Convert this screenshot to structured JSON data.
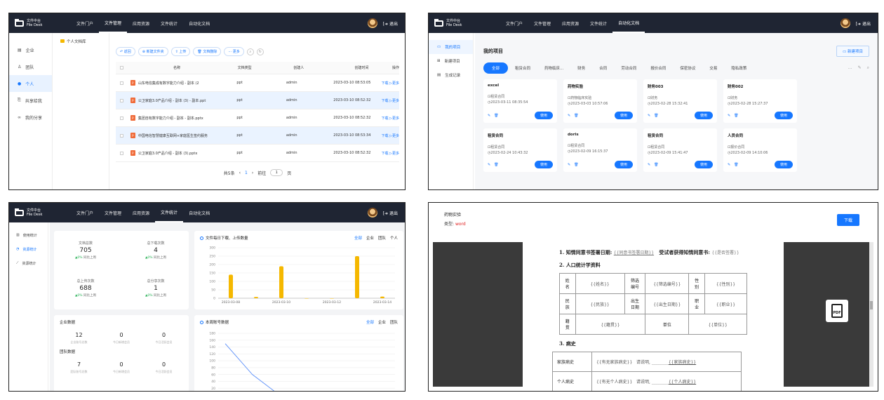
{
  "brand": {
    "line1": "文件中台",
    "line2": "File Desk",
    "logout": "退出"
  },
  "nav": [
    "文件门户",
    "文件管理",
    "应用资源",
    "文件统计",
    "自动化文档"
  ],
  "p1": {
    "sidebar": [
      "企业",
      "团队",
      "个人",
      "共享给我",
      "我的分享"
    ],
    "tree_folder": "个人文档库",
    "toolbar": [
      "返回",
      "新建文件夹",
      "上传",
      "文档删除",
      "更多"
    ],
    "columns": [
      "名称",
      "文档类型",
      "创建人",
      "创建时间",
      "操作"
    ],
    "rows": [
      {
        "name": "山东电信集成有数字能力介绍 - 副本 (2",
        "type": "ppt",
        "user": "admin",
        "time": "2023-03-10 08:53:05",
        "op": "下载 ▷更多"
      },
      {
        "name": "公卫家庭3.0产品介绍 - 副本 (3) - 副本.ppt",
        "type": "ppt",
        "user": "admin",
        "time": "2023-03-10 08:52:32",
        "op": "下载 ▷更多"
      },
      {
        "name": "集团自有数字能力介绍 - 副本 - 副本.pptx",
        "type": "ppt",
        "user": "admin",
        "time": "2023-03-10 08:52:32",
        "op": "下载 ▷更多"
      },
      {
        "name": "中国电信智慧健康互联网+家庭医生签约服务",
        "type": "ppt",
        "user": "admin",
        "time": "2023-03-10 08:53:34",
        "op": "下载 ▷更多"
      },
      {
        "name": "公卫家庭3.0产品介绍 - 副本 (3).pptx",
        "type": "ppt",
        "user": "admin",
        "time": "2023-03-10 08:52:32",
        "op": "下载 ▷更多"
      }
    ],
    "pager": {
      "total": "共5条",
      "page": "1",
      "goto": "前往",
      "goto_val": "1",
      "unit": "页"
    }
  },
  "p2": {
    "sidebar": [
      "我的项目",
      "新建项目",
      "生成记录"
    ],
    "title": "我的项目",
    "new_button": "新建项目",
    "tabs": [
      "全部",
      "租赁合同",
      "药物临床...",
      "财务",
      "合同",
      "劳动合同",
      "报价合同",
      "保密协议",
      "交易",
      "隐私政策"
    ],
    "use_label": "使用",
    "cards": [
      {
        "title": "excel",
        "tag": "租赁合同",
        "time": "2023-03-11 08:35:54"
      },
      {
        "title": "药物实验",
        "tag": "药物临床实验",
        "time": "2023-03-03 10:57:06"
      },
      {
        "title": "财务003",
        "tag": "财务",
        "time": "2023-02-28 15:32:41"
      },
      {
        "title": "财务002",
        "tag": "财务",
        "time": "2023-02-28 15:27:37"
      },
      {
        "title": "租赁合同",
        "tag": "租赁合同",
        "time": "2023-02-24 10:43:32"
      },
      {
        "title": "doris",
        "tag": "租赁合同",
        "time": "2023-02-09 16:15:37"
      },
      {
        "title": "租赁合同",
        "tag": "租赁合同",
        "time": "2023-02-09 15:41:47"
      },
      {
        "title": "人员合同",
        "tag": "报价合同",
        "time": "2023-02-09 14:10:06"
      }
    ]
  },
  "p3": {
    "sidebar": [
      "使用统计",
      "资源统计",
      "资源统计"
    ],
    "stats": [
      {
        "label": "文档总数",
        "value": "705",
        "change": "▲0%",
        "cmp": "同比上周"
      },
      {
        "label": "总下载次数",
        "value": "4",
        "change": "▲0%",
        "cmp": "同比上周"
      },
      {
        "label": "总上传次数",
        "value": "688",
        "change": "▲0%",
        "cmp": "同比上周"
      },
      {
        "label": "总分享次数",
        "value": "1",
        "change": "▲0%",
        "cmp": "同比上周"
      }
    ],
    "org": {
      "enterprise_title": "企业数据",
      "enterprise": [
        {
          "value": "12",
          "label": "企业账号总数"
        },
        {
          "value": "0",
          "label": "今日新增会员"
        },
        {
          "value": "0",
          "label": "今日活跃会员"
        }
      ],
      "team_title": "团队数据",
      "team": [
        {
          "value": "7",
          "label": "团队账号总数"
        },
        {
          "value": "0",
          "label": "今日新增会员"
        },
        {
          "value": "0",
          "label": "今日活跃会员"
        }
      ]
    },
    "chart1_filters": [
      "全部",
      "企业",
      "团队",
      "个人"
    ],
    "chart2_filters": [
      "全部",
      "企业",
      "团队"
    ]
  },
  "chart_data": [
    {
      "type": "bar",
      "title": "文件每日下载、上传数量",
      "x": [
        "2023-03-08",
        "",
        "2023-03-10",
        "",
        "2023-03-12",
        "",
        "2023-03-14"
      ],
      "series": [
        {
          "values": [
            140,
            8,
            190,
            0,
            0,
            250,
            10
          ]
        }
      ],
      "ylim": [
        0,
        300
      ],
      "yticks": [
        0,
        50,
        100,
        150,
        200,
        250,
        300
      ],
      "color": "#f5b800"
    },
    {
      "type": "line",
      "title": "本周账号数据",
      "x": [
        "2023-03-13",
        "2023-03-14",
        "2023-03-15",
        "2023-03-16",
        "2023-03-17",
        "2023-03-18",
        "2023-03-19"
      ],
      "series": [
        {
          "values": [
            150,
            60,
            0,
            0,
            0,
            0,
            0
          ],
          "color": "#5b8ff9"
        },
        {
          "values": [
            0,
            0,
            0,
            0,
            0,
            0,
            0
          ],
          "color": "#5ad8a6"
        }
      ],
      "ylim": [
        0,
        180
      ],
      "yticks": [
        0,
        20,
        40,
        60,
        80,
        100,
        120,
        140,
        160,
        180
      ]
    }
  ],
  "p4": {
    "doc_name": "药物实验",
    "type_label": "类型:",
    "type_value": "word",
    "download": "下载",
    "line1_a": "1. 知情同意书签署日期:",
    "line1_b": "{{同意书签署日期}}",
    "line1_c": "受试者获得知情同意书:",
    "line1_d": "{{是否签署}}",
    "section2": "2. 人口统计学资料",
    "table": [
      [
        "姓名",
        "{{姓名}}",
        "筛选编号",
        "{{筛选编号}}",
        "性别",
        "{{性别}}"
      ],
      [
        "民族",
        "{{民族}}",
        "出生日期",
        "{{出生日期}}",
        "职业",
        "{{职业}}"
      ],
      [
        "籍贯",
        "{{籍贯}}",
        "单位",
        "{{单位}}"
      ]
    ],
    "section3": "3. 病史",
    "history": [
      [
        "家族病史",
        "{{有无家族病史}}",
        "请说明,",
        "{{家族病史}}"
      ],
      [
        "个人病史",
        "{{有无个人病史}}",
        "请说明,",
        "{{个人病史}}"
      ]
    ],
    "pdf": "PDF"
  }
}
